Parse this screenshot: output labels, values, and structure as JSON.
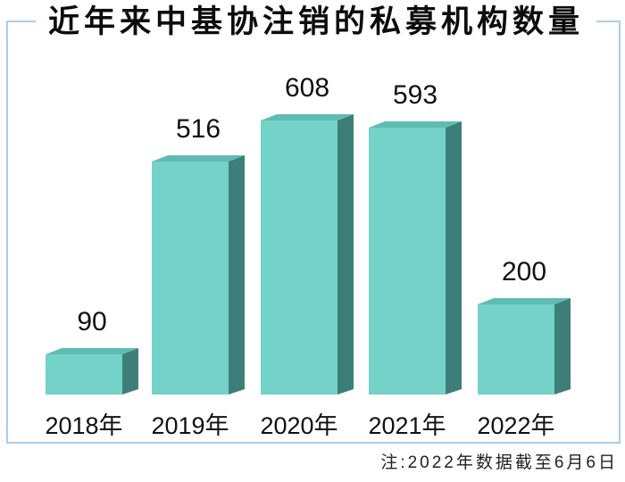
{
  "chart_data": {
    "type": "bar",
    "title": "近年来中基协注销的私募机构数量",
    "categories": [
      "2018年",
      "2019年",
      "2020年",
      "2021年",
      "2022年"
    ],
    "values": [
      90,
      516,
      608,
      593,
      200
    ],
    "note": "注:2022年数据截至6月6日",
    "value_labels_shown": true,
    "grid": false,
    "legend": "none",
    "axes": "none (no axis lines or tick values shown, values labeled above bars)",
    "style": "3d-extruded-bars",
    "colors": {
      "bar_front": "#74d2c8",
      "bar_top": "#5fbcb3",
      "bar_side": "#3d7f78",
      "frame_border": "#a9cdec",
      "title_text": "#0d0d0d",
      "label_text": "#111111",
      "note_text": "#222222",
      "background": "#ffffff"
    }
  }
}
